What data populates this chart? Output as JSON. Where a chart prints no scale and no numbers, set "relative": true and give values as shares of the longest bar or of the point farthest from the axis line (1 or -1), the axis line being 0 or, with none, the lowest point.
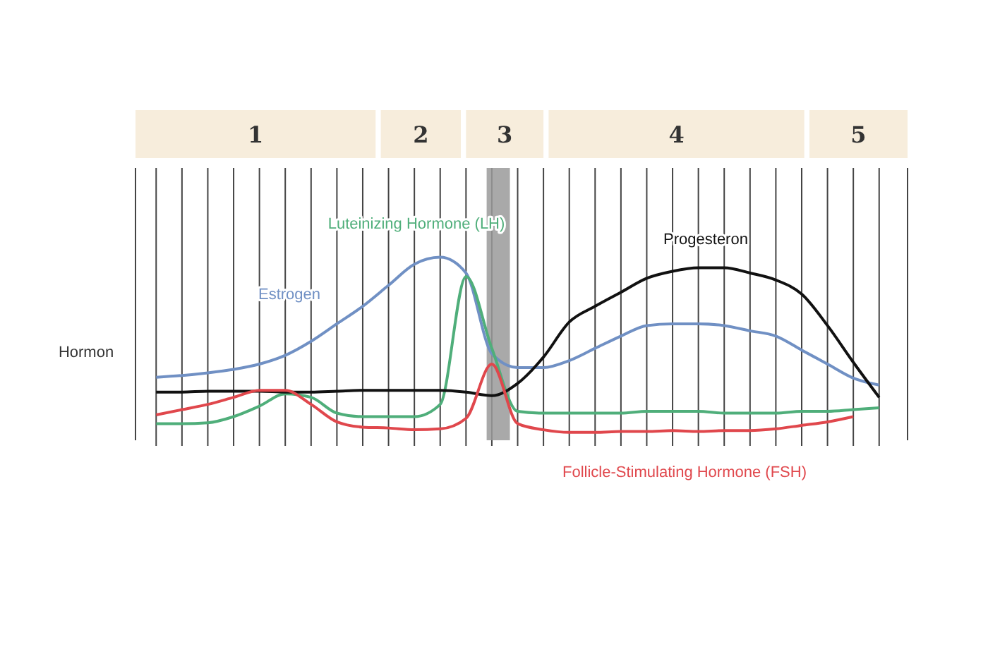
{
  "chart_data": {
    "type": "line",
    "relative": true,
    "ylabel": "Hormon",
    "categories": [
      null,
      null,
      null,
      null,
      null,
      null,
      null,
      null,
      null,
      null,
      null,
      null,
      null,
      null,
      null,
      null,
      null,
      null,
      null,
      null,
      null,
      null,
      null,
      null,
      null,
      null,
      null,
      null,
      null
    ],
    "series": [
      {
        "name": "Estrogen",
        "color": "#7090c4",
        "values": [
          0.315,
          0.325,
          0.34,
          0.36,
          0.39,
          0.44,
          0.52,
          0.62,
          0.72,
          0.84,
          0.96,
          1,
          0.91,
          0.45,
          0.37,
          0.37,
          0.41,
          0.48,
          0.55,
          0.61,
          0.62,
          0.62,
          0.61,
          0.58,
          0.55,
          0.47,
          0.39,
          0.31,
          0.27
        ]
      },
      {
        "name": "Luteinizing Hormone (LH)",
        "color": "#4fae7a",
        "values": [
          0.05,
          0.05,
          0.055,
          0.09,
          0.15,
          0.22,
          0.2,
          0.11,
          0.09,
          0.09,
          0.09,
          0.16,
          0.89,
          0.48,
          0.12,
          0.11,
          0.11,
          0.11,
          0.11,
          0.12,
          0.12,
          0.12,
          0.11,
          0.11,
          0.11,
          0.12,
          0.12,
          0.13,
          0.14
        ]
      },
      {
        "name": "Progesteron",
        "color": "#111111",
        "values": [
          0.23,
          0.23,
          0.235,
          0.235,
          0.235,
          0.23,
          0.23,
          0.235,
          0.24,
          0.24,
          0.24,
          0.24,
          0.23,
          0.21,
          0.28,
          0.43,
          0.63,
          0.72,
          0.8,
          0.88,
          0.92,
          0.94,
          0.94,
          0.91,
          0.87,
          0.79,
          0.61,
          0.4,
          0.2
        ]
      },
      {
        "name": "Follicle-Stimulating Hormone (FSH)",
        "color": "#e0474c",
        "values": [
          0.1,
          0.13,
          0.16,
          0.2,
          0.24,
          0.24,
          0.16,
          0.06,
          0.03,
          0.025,
          0.015,
          0.02,
          0.08,
          0.39,
          0.05,
          0.015,
          0,
          0,
          0.005,
          0.005,
          0.01,
          0.005,
          0.01,
          0.01,
          0.02,
          0.04,
          0.06,
          0.09,
          null
        ]
      }
    ],
    "annotations": [
      "1",
      "2",
      "3",
      "4",
      "5"
    ],
    "grid": "x",
    "marker": "none",
    "line_style": "solid"
  }
}
